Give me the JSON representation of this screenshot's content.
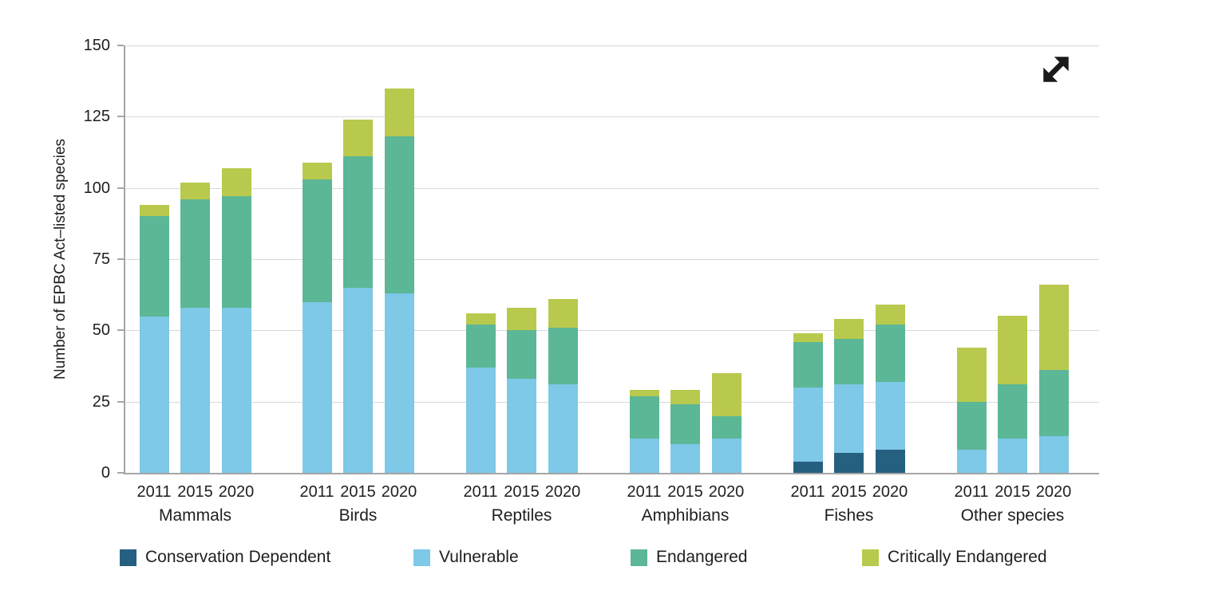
{
  "controls": {
    "expand_icon": "diagonal-expand-arrow"
  },
  "chart_data": {
    "type": "bar",
    "stacked": true,
    "title": "",
    "ylabel": "Number of EPBC Act–listed species",
    "xlabel": "",
    "ylim": [
      0,
      150
    ],
    "yticks": [
      0,
      25,
      50,
      75,
      100,
      125,
      150
    ],
    "grid": "horizontal",
    "legend_position": "bottom",
    "years": [
      "2011",
      "2015",
      "2020"
    ],
    "groups": [
      "Mammals",
      "Birds",
      "Reptiles",
      "Amphibians",
      "Fishes",
      "Other species"
    ],
    "series": [
      {
        "label": "Conservation Dependent",
        "color": "#266080",
        "values": [
          [
            0,
            0,
            0
          ],
          [
            0,
            0,
            0
          ],
          [
            0,
            0,
            0
          ],
          [
            0,
            0,
            0
          ],
          [
            4,
            7,
            8
          ],
          [
            0,
            0,
            0
          ]
        ]
      },
      {
        "label": "Vulnerable",
        "color": "#7ec8e8",
        "values": [
          [
            55,
            58,
            58
          ],
          [
            60,
            65,
            63
          ],
          [
            37,
            33,
            31
          ],
          [
            12,
            10,
            12
          ],
          [
            26,
            24,
            24
          ],
          [
            8,
            12,
            13
          ]
        ]
      },
      {
        "label": "Endangered",
        "color": "#5bb795",
        "values": [
          [
            35,
            38,
            39
          ],
          [
            43,
            46,
            55
          ],
          [
            15,
            17,
            20
          ],
          [
            15,
            14,
            8
          ],
          [
            16,
            16,
            20
          ],
          [
            17,
            19,
            23
          ]
        ]
      },
      {
        "label": "Critically Endangered",
        "color": "#b9c94e",
        "values": [
          [
            4,
            6,
            10
          ],
          [
            6,
            13,
            17
          ],
          [
            4,
            8,
            10
          ],
          [
            2,
            5,
            15
          ],
          [
            3,
            7,
            7
          ],
          [
            19,
            24,
            30
          ]
        ]
      }
    ],
    "stack_totals": {
      "Mammals": [
        94,
        102,
        107
      ],
      "Birds": [
        109,
        124,
        135
      ],
      "Reptiles": [
        56,
        58,
        61
      ],
      "Amphibians": [
        29,
        29,
        35
      ],
      "Fishes": [
        49,
        54,
        59
      ],
      "Other species": [
        44,
        55,
        66
      ]
    }
  }
}
